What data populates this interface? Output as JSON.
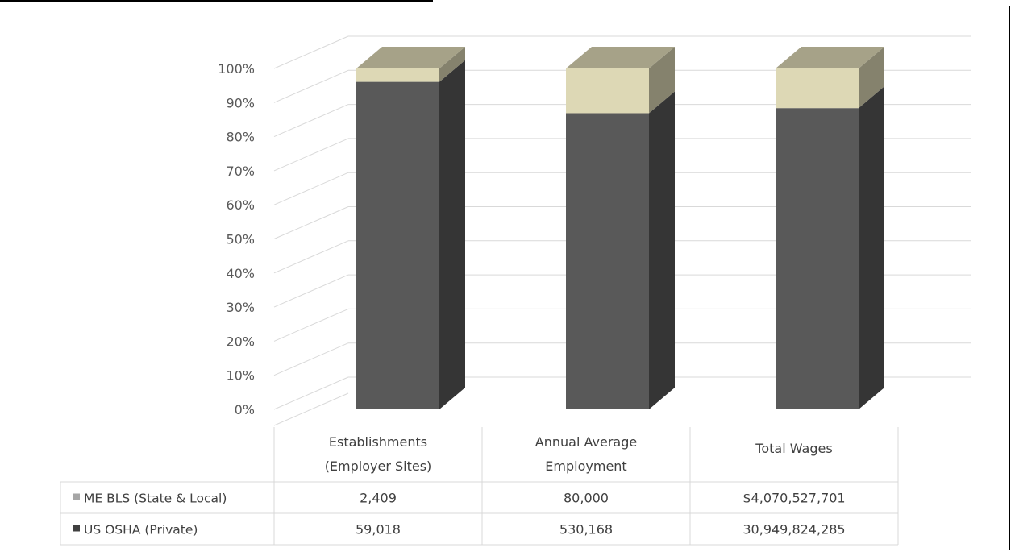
{
  "chart_data": {
    "type": "bar",
    "stacked_percent": true,
    "three_d": true,
    "title": "",
    "xlabel": "",
    "ylabel": "",
    "ylim": [
      0,
      100
    ],
    "y_ticks": [
      "0%",
      "10%",
      "20%",
      "30%",
      "40%",
      "50%",
      "60%",
      "70%",
      "80%",
      "90%",
      "100%"
    ],
    "categories": [
      [
        "Establishments",
        "(Employer Sites)"
      ],
      [
        "Annual Average",
        "Employment"
      ],
      [
        "Total Wages"
      ]
    ],
    "series": [
      {
        "name": "US OSHA (Private)",
        "values": [
          59018,
          530168,
          30949824285
        ],
        "display": [
          "59,018",
          "530,168",
          "30,949,824,285"
        ],
        "color": "#595959"
      },
      {
        "name": "ME BLS (State & Local)",
        "values": [
          2409,
          80000,
          4070527701
        ],
        "display": [
          "2,409",
          "80,000",
          "$4,070,527,701"
        ],
        "color": "#ddd8b5"
      }
    ],
    "data_table": true,
    "legend_keys": [
      "#a6a6a6",
      "#404040"
    ],
    "grid": true
  }
}
